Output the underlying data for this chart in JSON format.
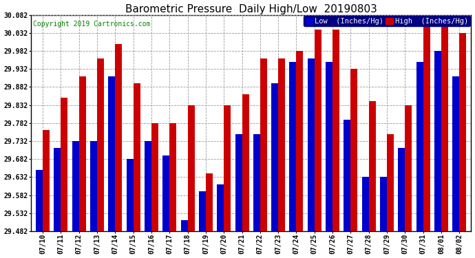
{
  "title": "Barometric Pressure  Daily High/Low  20190803",
  "copyright": "Copyright 2019 Cartronics.com",
  "legend_low": "Low  (Inches/Hg)",
  "legend_high": "High  (Inches/Hg)",
  "dates": [
    "07/10",
    "07/11",
    "07/12",
    "07/13",
    "07/14",
    "07/15",
    "07/16",
    "07/17",
    "07/18",
    "07/19",
    "07/20",
    "07/21",
    "07/22",
    "07/23",
    "07/24",
    "07/25",
    "07/26",
    "07/27",
    "07/28",
    "07/29",
    "07/30",
    "07/31",
    "08/01",
    "08/02"
  ],
  "low_values": [
    29.652,
    29.712,
    29.732,
    29.732,
    29.912,
    29.682,
    29.732,
    29.692,
    29.512,
    29.592,
    29.612,
    29.752,
    29.752,
    29.892,
    29.952,
    29.962,
    29.952,
    29.792,
    29.632,
    29.632,
    29.712,
    29.952,
    29.982,
    29.912
  ],
  "high_values": [
    29.762,
    29.852,
    29.912,
    29.962,
    30.002,
    29.892,
    29.782,
    29.782,
    29.832,
    29.642,
    29.832,
    29.862,
    29.962,
    29.962,
    29.982,
    30.042,
    30.042,
    29.932,
    29.842,
    29.752,
    29.832,
    30.062,
    30.072,
    30.032
  ],
  "ylim": [
    29.482,
    30.082
  ],
  "yticks": [
    29.482,
    29.532,
    29.582,
    29.632,
    29.682,
    29.732,
    29.782,
    29.832,
    29.882,
    29.932,
    29.982,
    30.032,
    30.082
  ],
  "low_color": "#0000cc",
  "high_color": "#cc0000",
  "background_color": "#ffffff",
  "plot_bg_color": "#ffffff",
  "grid_color": "#999999",
  "bar_width": 0.38,
  "title_fontsize": 11,
  "copyright_fontsize": 7,
  "tick_fontsize": 7,
  "legend_fontsize": 7.5
}
